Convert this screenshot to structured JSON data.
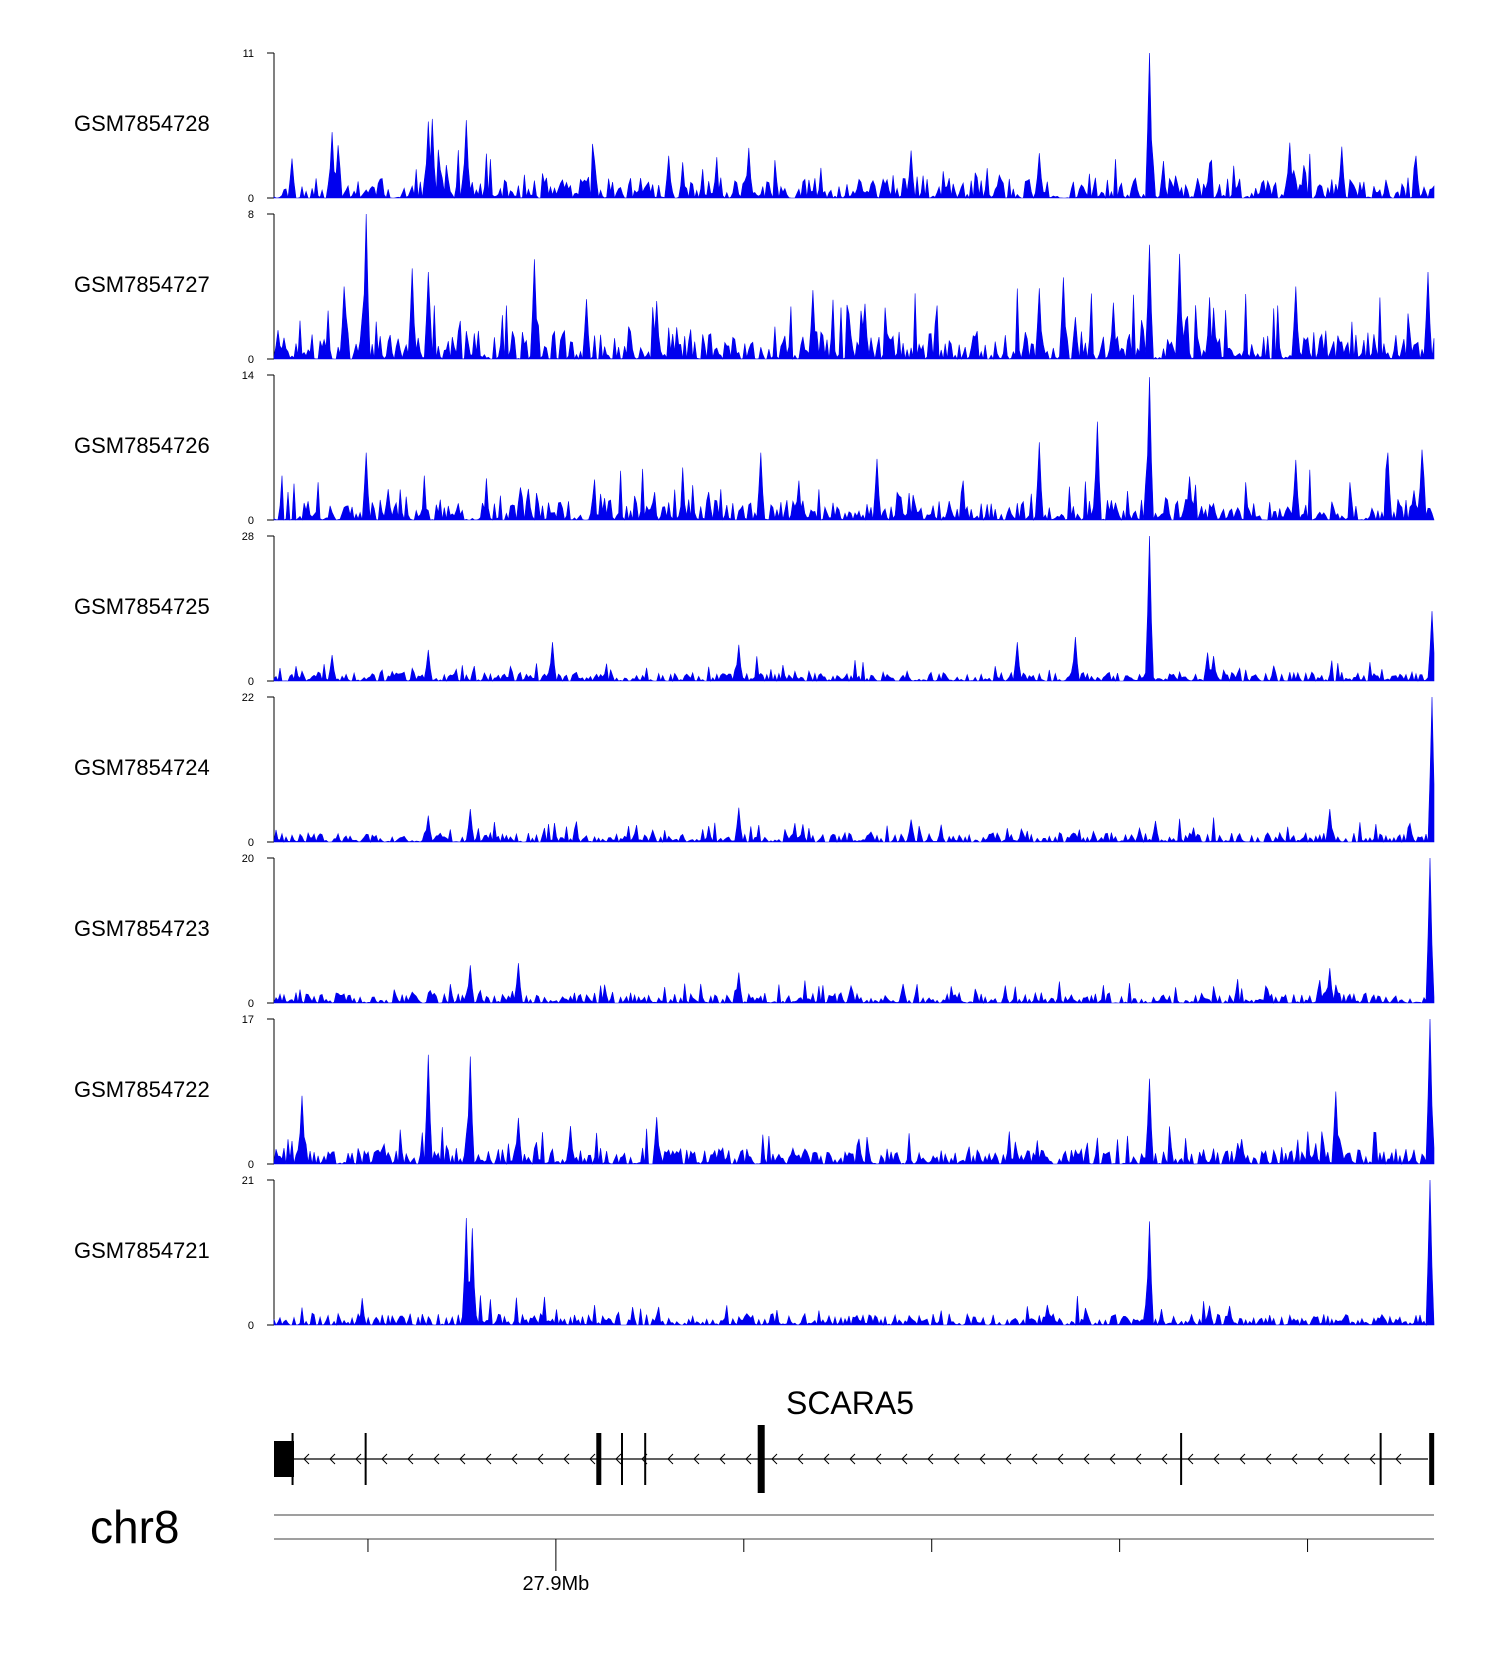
{
  "chart_data": {
    "type": "area",
    "tracks": [
      {
        "name": "GSM7854728",
        "ymax": 11,
        "ymin": 0,
        "peaks": [
          [
            0.015,
            3
          ],
          [
            0.05,
            5
          ],
          [
            0.055,
            4
          ],
          [
            0.133,
            5.8
          ],
          [
            0.137,
            6
          ],
          [
            0.166,
            5.9
          ],
          [
            0.34,
            3.2
          ],
          [
            0.41,
            3.8
          ],
          [
            0.55,
            3.6
          ],
          [
            0.66,
            3.4
          ],
          [
            0.755,
            11
          ],
          [
            0.875,
            4.2
          ],
          [
            0.92,
            3.9
          ],
          [
            0.985,
            3.2
          ]
        ],
        "noise": 2.8,
        "seed": 11
      },
      {
        "name": "GSM7854727",
        "ymax": 8,
        "ymin": 0,
        "peaks": [
          [
            0.06,
            4
          ],
          [
            0.08,
            8
          ],
          [
            0.12,
            5
          ],
          [
            0.133,
            4.8
          ],
          [
            0.225,
            5.5
          ],
          [
            0.27,
            3.3
          ],
          [
            0.33,
            3.2
          ],
          [
            0.465,
            3.8
          ],
          [
            0.66,
            3.9
          ],
          [
            0.68,
            4.5
          ],
          [
            0.755,
            6.3
          ],
          [
            0.78,
            5.8
          ],
          [
            0.88,
            4
          ],
          [
            0.995,
            4.8
          ]
        ],
        "noise": 3.0,
        "seed": 27
      },
      {
        "name": "GSM7854726",
        "ymax": 14,
        "ymin": 0,
        "peaks": [
          [
            0.08,
            6.5
          ],
          [
            0.22,
            3
          ],
          [
            0.42,
            6.5
          ],
          [
            0.52,
            5.9
          ],
          [
            0.66,
            7.5
          ],
          [
            0.71,
            9.5
          ],
          [
            0.755,
            13.8
          ],
          [
            0.88,
            5.8
          ],
          [
            0.96,
            6.5
          ],
          [
            0.99,
            6.8
          ]
        ],
        "noise": 3.6,
        "seed": 39
      },
      {
        "name": "GSM7854725",
        "ymax": 28,
        "ymin": 0,
        "peaks": [
          [
            0.05,
            5
          ],
          [
            0.133,
            6
          ],
          [
            0.24,
            7.5
          ],
          [
            0.4,
            7
          ],
          [
            0.64,
            7.5
          ],
          [
            0.69,
            8.5
          ],
          [
            0.755,
            28
          ],
          [
            0.805,
            5.5
          ],
          [
            0.81,
            4.8
          ],
          [
            0.998,
            13.5
          ]
        ],
        "noise": 3.2,
        "seed": 53
      },
      {
        "name": "GSM7854724",
        "ymax": 22,
        "ymin": 0,
        "peaks": [
          [
            0.133,
            4
          ],
          [
            0.17,
            5
          ],
          [
            0.4,
            5.2
          ],
          [
            0.55,
            3.4
          ],
          [
            0.76,
            3.2
          ],
          [
            0.91,
            5
          ],
          [
            0.998,
            22
          ]
        ],
        "noise": 2.6,
        "seed": 61
      },
      {
        "name": "GSM7854723",
        "ymax": 20,
        "ymin": 0,
        "peaks": [
          [
            0.17,
            5.2
          ],
          [
            0.21,
            5.5
          ],
          [
            0.4,
            4.2
          ],
          [
            0.91,
            4.8
          ],
          [
            0.997,
            20
          ]
        ],
        "noise": 2.6,
        "seed": 73
      },
      {
        "name": "GSM7854722",
        "ymax": 17,
        "ymin": 0,
        "peaks": [
          [
            0.025,
            8
          ],
          [
            0.133,
            12.8
          ],
          [
            0.17,
            12.6
          ],
          [
            0.21,
            5.4
          ],
          [
            0.33,
            5.5
          ],
          [
            0.755,
            10
          ],
          [
            0.915,
            8.5
          ],
          [
            0.997,
            17
          ]
        ],
        "noise": 3.4,
        "seed": 89
      },
      {
        "name": "GSM7854721",
        "ymax": 21,
        "ymin": 0,
        "peaks": [
          [
            0.165,
            15.5
          ],
          [
            0.171,
            14
          ],
          [
            0.755,
            15
          ],
          [
            0.997,
            21
          ]
        ],
        "noise": 3.0,
        "seed": 97
      }
    ],
    "gene": {
      "name": "SCARA5",
      "strand": "-",
      "exons": [
        0.0,
        0.016,
        0.079,
        0.28,
        0.3,
        0.32,
        0.42,
        0.782,
        0.954,
        0.998
      ]
    },
    "axis": {
      "chromosome": "chr8",
      "tick_label": "27.9Mb",
      "ticks": [
        0.081,
        0.243,
        0.405,
        0.567,
        0.729,
        0.891
      ],
      "labeled_tick_index": 1
    },
    "xlabel": "",
    "ylabel": "",
    "title": "",
    "colors": {
      "signal": "#0000ee",
      "axis": "#000000",
      "gene": "#000000",
      "baseline": "#666666"
    }
  }
}
